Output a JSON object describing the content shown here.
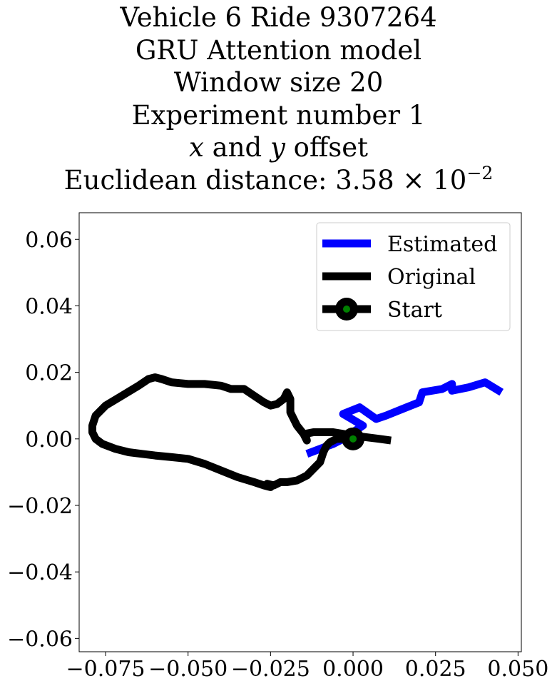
{
  "title": {
    "line1": "Vehicle 6 Ride 9307264",
    "line2": "GRU Attention model",
    "line3": "Window size 20",
    "line4": "Experiment number 1",
    "line5_x": "x",
    "line5_and": " and ",
    "line5_y": "y",
    "line5_rest": " offset",
    "line6_prefix": "Euclidean distance: 3.58 × 10",
    "line6_exp": "−2"
  },
  "colors": {
    "estimated": "#0000ff",
    "original": "#000000",
    "start_marker": "#008000"
  },
  "chart_data": {
    "type": "line",
    "xlim": [
      -0.083,
      0.051
    ],
    "ylim": [
      -0.064,
      0.068
    ],
    "xticks": [
      -0.075,
      -0.05,
      -0.025,
      0.0,
      0.025,
      0.05
    ],
    "xtick_labels": [
      "−0.075",
      "−0.050",
      "−0.025",
      "0.000",
      "0.025",
      "0.050"
    ],
    "yticks": [
      0.06,
      0.04,
      0.02,
      0.0,
      -0.02,
      -0.04,
      -0.06
    ],
    "ytick_labels": [
      "0.06",
      "0.04",
      "0.02",
      "0.00",
      "−0.02",
      "−0.04",
      "−0.06"
    ],
    "grid": false,
    "legend_position": "top-right",
    "series": [
      {
        "name": "Estimated",
        "color": "#0000ff",
        "x": [
          -0.014,
          -0.01,
          -0.006,
          -0.003,
          0.0,
          0.003,
          -0.003,
          0.002,
          0.007,
          0.01,
          0.015,
          0.02,
          0.021,
          0.027,
          0.03,
          0.03,
          0.035,
          0.04,
          0.045
        ],
        "y": [
          -0.0045,
          -0.003,
          -0.0015,
          0.0,
          0.002,
          0.004,
          0.0075,
          0.0095,
          0.006,
          0.007,
          0.009,
          0.011,
          0.014,
          0.015,
          0.0165,
          0.0145,
          0.0155,
          0.017,
          0.014
        ]
      },
      {
        "name": "Original",
        "color": "#000000",
        "x": [
          0.0115,
          0.008,
          0.004,
          0.0,
          -0.003,
          -0.006,
          -0.009,
          -0.012,
          -0.0145,
          -0.014,
          -0.015,
          -0.017,
          -0.019,
          -0.019,
          -0.02,
          -0.021,
          -0.023,
          -0.025,
          -0.027,
          -0.03,
          -0.033,
          -0.037,
          -0.04,
          -0.045,
          -0.05,
          -0.055,
          -0.058,
          -0.06,
          -0.062,
          -0.065,
          -0.07,
          -0.075,
          -0.078,
          -0.079,
          -0.079,
          -0.078,
          -0.076,
          -0.072,
          -0.068,
          -0.064,
          -0.06,
          -0.055,
          -0.05,
          -0.045,
          -0.04,
          -0.035,
          -0.03,
          -0.027,
          -0.025,
          -0.026,
          -0.024,
          -0.022,
          -0.02,
          -0.017,
          -0.014,
          -0.01,
          -0.009,
          -0.008,
          -0.007,
          -0.005,
          -0.003,
          -0.001,
          0.0
        ],
        "y": [
          -0.0005,
          0.0,
          0.0005,
          0.001,
          0.0015,
          0.002,
          0.002,
          0.002,
          0.0015,
          -0.0005,
          0.0015,
          0.004,
          0.008,
          0.012,
          0.014,
          0.012,
          0.0105,
          0.01,
          0.011,
          0.013,
          0.015,
          0.015,
          0.016,
          0.0165,
          0.0165,
          0.017,
          0.018,
          0.0185,
          0.018,
          0.016,
          0.013,
          0.01,
          0.007,
          0.004,
          0.002,
          0.0,
          -0.0015,
          -0.003,
          -0.004,
          -0.0045,
          -0.005,
          -0.0055,
          -0.006,
          -0.0075,
          -0.0095,
          -0.0115,
          -0.013,
          -0.014,
          -0.0145,
          -0.0135,
          -0.014,
          -0.013,
          -0.013,
          -0.0125,
          -0.011,
          -0.007,
          -0.004,
          -0.002,
          -0.001,
          0.0,
          0.0,
          0.0,
          0.0
        ]
      },
      {
        "name": "Start",
        "color": "#000000",
        "marker_color": "#008000",
        "x": [
          0.0
        ],
        "y": [
          0.0
        ]
      }
    ]
  }
}
